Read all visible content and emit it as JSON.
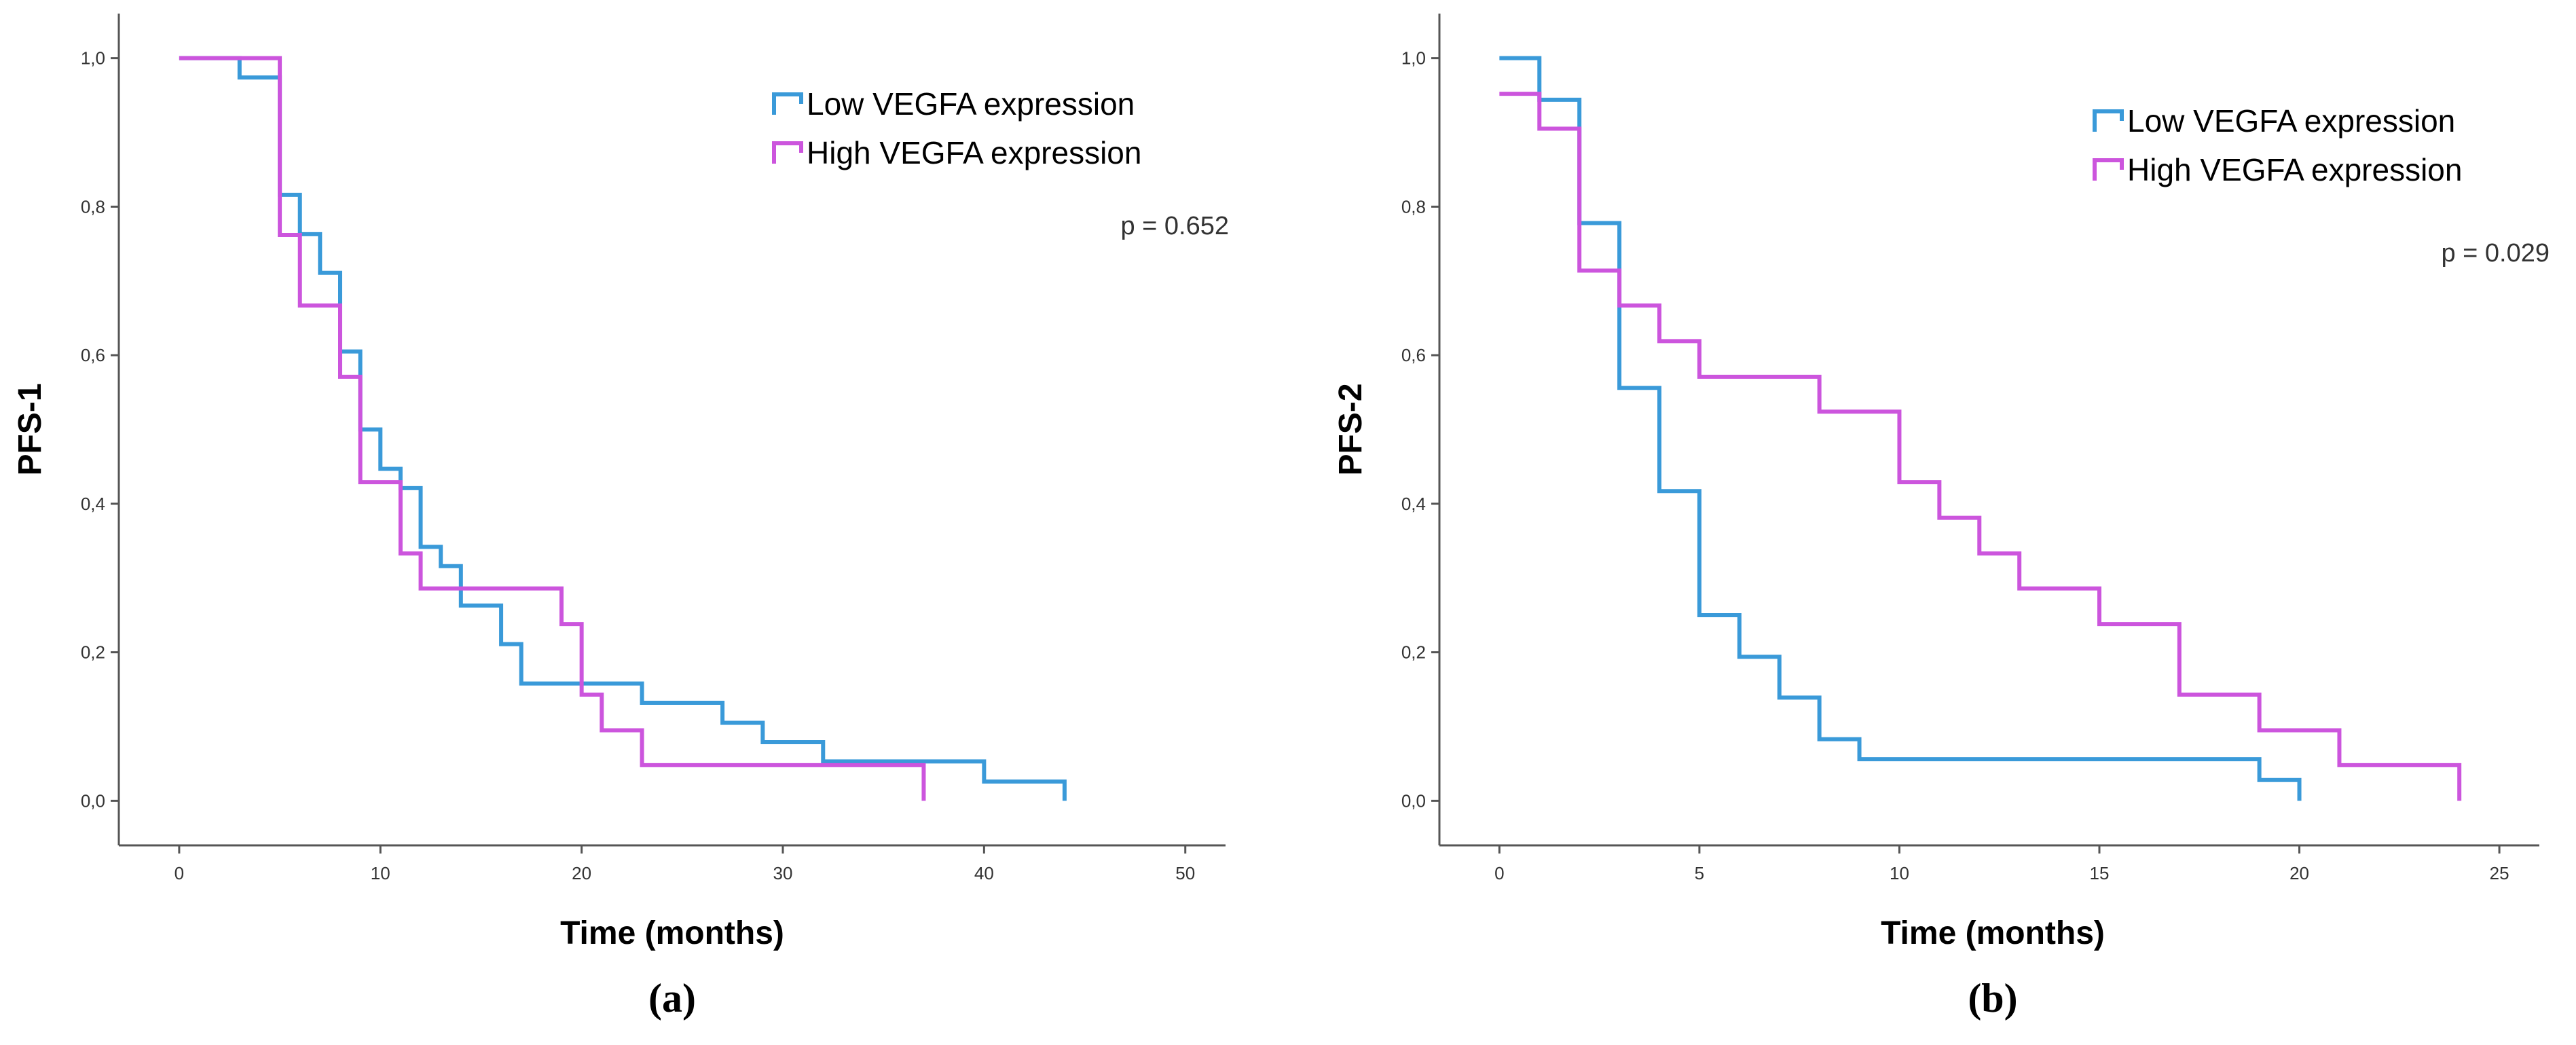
{
  "chart_data": [
    {
      "type": "line",
      "subtype": "kaplan-meier",
      "panel_label": "(a)",
      "xlabel": "Time (months)",
      "ylabel": "PFS-1",
      "xlim": [
        -3,
        52
      ],
      "ylim": [
        -0.06,
        1.06
      ],
      "xticks": [
        0,
        10,
        20,
        30,
        40,
        50
      ],
      "xtick_labels": [
        "0",
        "10",
        "20",
        "30",
        "40",
        "50"
      ],
      "yticks": [
        0.0,
        0.2,
        0.4,
        0.6,
        0.8,
        1.0
      ],
      "ytick_labels": [
        "0,0",
        "0,2",
        "0,4",
        "0,6",
        "0,8",
        "1,0"
      ],
      "annotation": "p = 0.652",
      "legend_position": "top-right",
      "series": [
        {
          "name": "Low VEGFA expression",
          "color": "#3a9ad9",
          "x": [
            0,
            3,
            5,
            6,
            7,
            8,
            9,
            10,
            11,
            12,
            13,
            14,
            16,
            17,
            20,
            23,
            27,
            29,
            32,
            40,
            44
          ],
          "y": [
            1.0,
            0.974,
            0.816,
            0.763,
            0.711,
            0.605,
            0.5,
            0.447,
            0.421,
            0.342,
            0.316,
            0.263,
            0.211,
            0.158,
            0.158,
            0.132,
            0.105,
            0.079,
            0.053,
            0.026,
            0.0
          ]
        },
        {
          "name": "High VEGFA expression",
          "color": "#cc55dd",
          "x": [
            0,
            5,
            6,
            8,
            9,
            11,
            12,
            19,
            20,
            21,
            23,
            37
          ],
          "y": [
            1.0,
            0.762,
            0.667,
            0.571,
            0.429,
            0.333,
            0.286,
            0.238,
            0.143,
            0.095,
            0.048,
            0.0
          ]
        }
      ]
    },
    {
      "type": "line",
      "subtype": "kaplan-meier",
      "panel_label": "(b)",
      "xlabel": "Time (months)",
      "ylabel": "PFS-2",
      "xlim": [
        -1.5,
        26
      ],
      "ylim": [
        -0.06,
        1.06
      ],
      "xticks": [
        0,
        5,
        10,
        15,
        20,
        25
      ],
      "xtick_labels": [
        "0",
        "5",
        "10",
        "15",
        "20",
        "25"
      ],
      "yticks": [
        0.0,
        0.2,
        0.4,
        0.6,
        0.8,
        1.0
      ],
      "ytick_labels": [
        "0,0",
        "0,2",
        "0,4",
        "0,6",
        "0,8",
        "1,0"
      ],
      "annotation": "p = 0.029",
      "legend_position": "top-right",
      "series": [
        {
          "name": "Low VEGFA expression",
          "color": "#3a9ad9",
          "x": [
            0,
            1,
            2,
            3,
            4,
            5,
            6,
            7,
            8,
            9,
            19,
            20
          ],
          "y": [
            1.0,
            0.944,
            0.778,
            0.556,
            0.417,
            0.25,
            0.194,
            0.139,
            0.083,
            0.056,
            0.028,
            0.0
          ]
        },
        {
          "name": "High VEGFA expression",
          "color": "#cc55dd",
          "x": [
            0,
            1,
            2,
            3,
            4,
            5,
            8,
            10,
            11,
            12,
            13,
            15,
            17,
            19,
            21,
            24
          ],
          "y": [
            0.952,
            0.905,
            0.714,
            0.667,
            0.619,
            0.571,
            0.524,
            0.429,
            0.381,
            0.333,
            0.286,
            0.238,
            0.143,
            0.095,
            0.048,
            0.0
          ]
        }
      ]
    }
  ]
}
